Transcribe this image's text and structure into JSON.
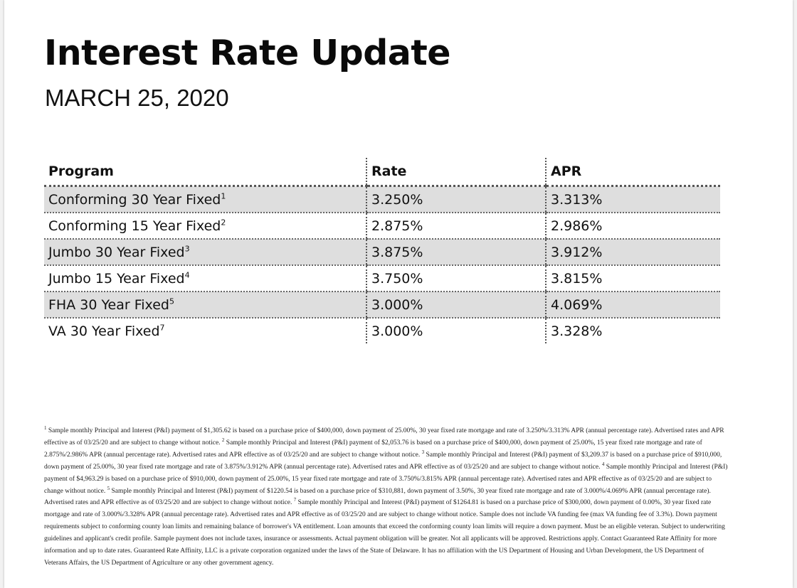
{
  "document": {
    "title": "Interest Rate Update",
    "date": "MARCH 25, 2020"
  },
  "table": {
    "headers": [
      "Program",
      "Rate",
      "APR"
    ],
    "rows": [
      {
        "program": "Conforming 30 Year Fixed",
        "note": "1",
        "rate": "3.250%",
        "apr": "3.313%",
        "shaded": true
      },
      {
        "program": "Conforming 15 Year Fixed",
        "note": "2",
        "rate": "2.875%",
        "apr": "2.986%",
        "shaded": false
      },
      {
        "program": "Jumbo 30 Year Fixed",
        "note": "3",
        "rate": "3.875%",
        "apr": "3.912%",
        "shaded": true
      },
      {
        "program": "Jumbo 15 Year Fixed",
        "note": "4",
        "rate": "3.750%",
        "apr": "3.815%",
        "shaded": false
      },
      {
        "program": "FHA 30 Year Fixed",
        "note": "5",
        "rate": "3.000%",
        "apr": "4.069%",
        "shaded": true
      },
      {
        "program": "VA 30 Year Fixed",
        "note": "7",
        "rate": "3.000%",
        "apr": "3.328%",
        "shaded": false
      }
    ],
    "shade_color": "#dedede"
  },
  "footnotes": [
    {
      "marker": "1",
      "text": "Sample monthly Principal and Interest (P&I) payment of $1,305.62 is based on a purchase price of $400,000, down payment of 25.00%, 30 year fixed rate mortgage and rate of 3.250%/3.313% APR (annual percentage rate). Advertised rates and APR effective as of 03/25/20 and are subject to change without notice."
    },
    {
      "marker": "2",
      "text": "Sample monthly Principal and Interest (P&I) payment of $2,053.76 is based on a purchase price of $400,000, down payment of 25.00%, 15 year fixed rate mortgage and rate of 2.875%/2.986% APR (annual percentage rate). Advertised rates and APR effective as of 03/25/20 and are subject to change without notice."
    },
    {
      "marker": "3",
      "text": "Sample monthly Principal and Interest (P&I) payment of $3,209.37 is based on a purchase price of $910,000, down payment of 25.00%, 30 year fixed rate mortgage and rate of 3.875%/3.912% APR (annual percentage rate). Advertised rates and APR effective as of 03/25/20 and are subject to change without notice."
    },
    {
      "marker": "4",
      "text": "Sample monthly Principal and Interest (P&I) payment of $4,963.29 is based on a purchase price of $910,000, down payment of 25.00%, 15 year fixed rate mortgage and rate of 3.750%/3.815% APR (annual percentage rate). Advertised rates and APR effective as of 03/25/20 and are subject to change without notice."
    },
    {
      "marker": "5",
      "text": "Sample monthly Principal and Interest (P&I) payment of $1220.54 is based on a purchase price of $310,881, down payment of 3.50%, 30 year fixed rate mortgage and rate of 3.000%/4.069% APR (annual percentage rate). Advertised rates and APR effective as of 03/25/20 and are subject to change without notice."
    },
    {
      "marker": "7",
      "text": "Sample monthly Principal and Interest (P&I) payment of $1264.81 is based on a purchase price of $300,000, down payment of 0.00%, 30 year fixed rate mortgage and rate of 3.000%/3.328% APR (annual percentage rate). Advertised rates and APR effective as of 03/25/20 and are subject to change without notice. Sample does not include VA funding fee (max VA funding fee of 3.3%). Down payment requirements subject to conforming county loan limits and remaining balance of borrower's VA entitlement. Loan amounts that exceed the conforming county loan limits will require a down payment. Must be an eligible veteran. Subject to underwriting guidelines and applicant's credit profile. Sample payment does not include taxes, insurance or assessments. Actual payment obligation will be greater. Not all applicants will be approved. Restrictions apply. Contact Guaranteed Rate Affinity for more information and up to date rates. Guaranteed Rate Affinity, LLC is a private corporation organized under the laws of the State of Delaware. It has no affiliation with the US Department of Housing and Urban Development, the US Department of Veterans Affairs, the US Department of Agriculture or any other government agency."
    }
  ]
}
